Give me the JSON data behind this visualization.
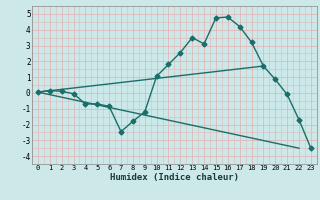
{
  "xlabel": "Humidex (Indice chaleur)",
  "bg_color": "#cce8e8",
  "grid_color": "#e0b8b8",
  "line_color": "#1a6e6a",
  "xlim": [
    -0.5,
    23.5
  ],
  "ylim": [
    -4.5,
    5.5
  ],
  "xticks": [
    0,
    1,
    2,
    3,
    4,
    5,
    6,
    7,
    8,
    9,
    10,
    11,
    12,
    13,
    14,
    15,
    16,
    17,
    18,
    19,
    20,
    21,
    22,
    23
  ],
  "yticks": [
    -4,
    -3,
    -2,
    -1,
    0,
    1,
    2,
    3,
    4,
    5
  ],
  "line1_x": [
    0,
    1,
    2,
    3,
    4,
    5,
    6,
    7,
    8,
    9,
    10,
    11,
    12,
    13,
    14,
    15,
    16,
    17,
    18,
    19,
    20,
    21,
    22,
    23
  ],
  "line1_y": [
    0.05,
    0.15,
    0.1,
    -0.05,
    -0.7,
    -0.7,
    -0.85,
    -2.45,
    -1.8,
    -1.2,
    1.05,
    1.8,
    2.55,
    3.5,
    3.1,
    4.75,
    4.8,
    4.2,
    3.2,
    1.7,
    0.85,
    -0.1,
    -1.7,
    -3.5
  ],
  "line2_x": [
    0,
    22
  ],
  "line2_y": [
    0.05,
    -3.5
  ],
  "line3_x": [
    0,
    19
  ],
  "line3_y": [
    0.05,
    1.7
  ],
  "marker": "D",
  "markersize": 2.5,
  "linewidth": 1.0
}
